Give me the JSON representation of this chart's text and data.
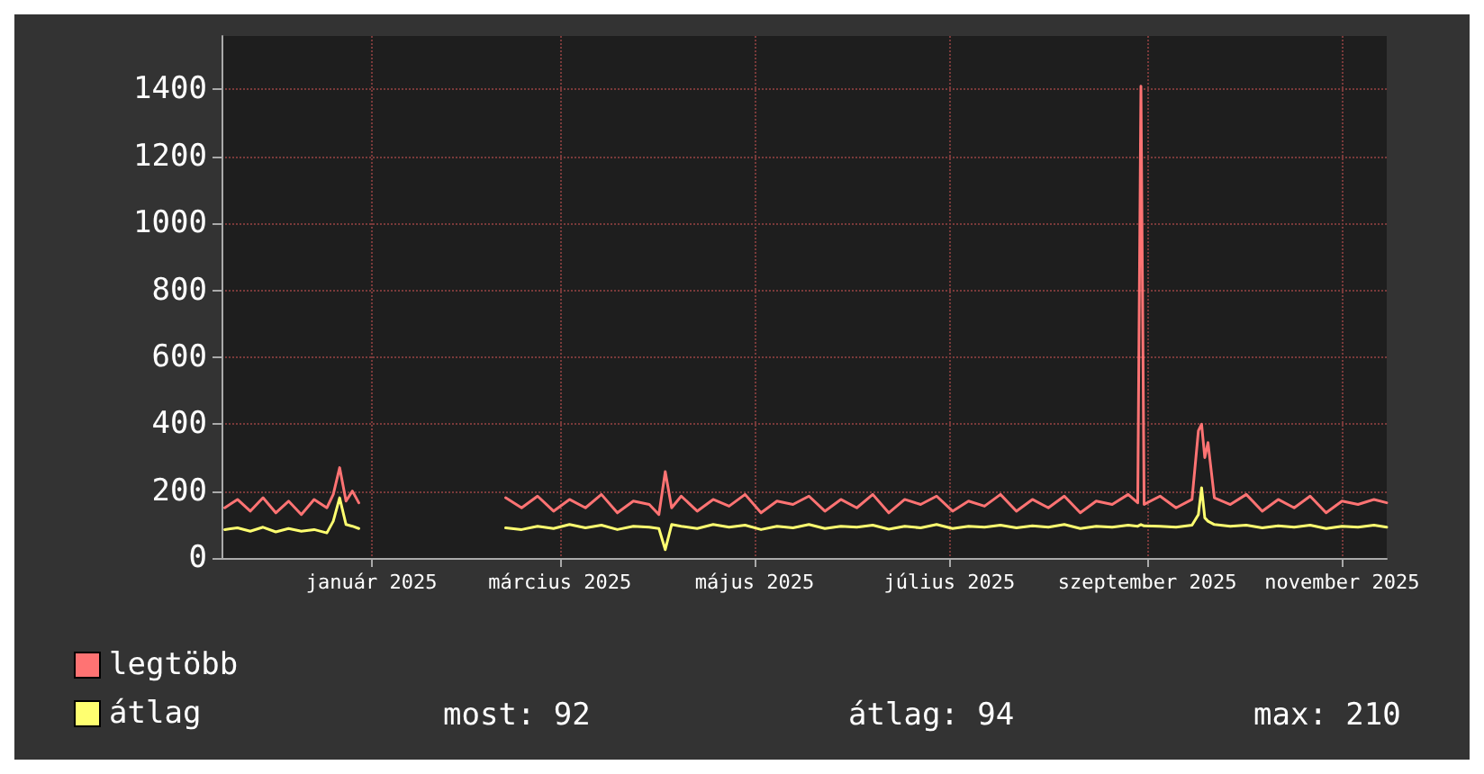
{
  "chart_data": {
    "type": "line",
    "x": [
      "2024-11-16",
      "2024-11-20",
      "2024-11-24",
      "2024-11-28",
      "2024-12-02",
      "2024-12-06",
      "2024-12-10",
      "2024-12-14",
      "2024-12-18",
      "2024-12-20",
      "2024-12-22",
      "2024-12-24",
      "2024-12-26",
      "2024-12-28",
      "2025-01-20",
      "2025-02-12",
      "2025-02-17",
      "2025-02-22",
      "2025-02-27",
      "2025-03-04",
      "2025-03-09",
      "2025-03-14",
      "2025-03-19",
      "2025-03-24",
      "2025-03-29",
      "2025-04-01",
      "2025-04-03",
      "2025-04-05",
      "2025-04-08",
      "2025-04-13",
      "2025-04-18",
      "2025-04-23",
      "2025-04-28",
      "2025-05-03",
      "2025-05-08",
      "2025-05-13",
      "2025-05-18",
      "2025-05-23",
      "2025-05-28",
      "2025-06-02",
      "2025-06-07",
      "2025-06-12",
      "2025-06-17",
      "2025-06-22",
      "2025-06-27",
      "2025-07-02",
      "2025-07-07",
      "2025-07-12",
      "2025-07-17",
      "2025-07-22",
      "2025-07-27",
      "2025-08-01",
      "2025-08-06",
      "2025-08-11",
      "2025-08-16",
      "2025-08-21",
      "2025-08-26",
      "2025-08-29",
      "2025-08-30",
      "2025-08-31",
      "2025-09-05",
      "2025-09-10",
      "2025-09-15",
      "2025-09-17",
      "2025-09-18",
      "2025-09-19",
      "2025-09-20",
      "2025-09-22",
      "2025-09-27",
      "2025-10-02",
      "2025-10-07",
      "2025-10-12",
      "2025-10-17",
      "2025-10-22",
      "2025-10-27",
      "2025-11-01",
      "2025-11-06",
      "2025-11-11",
      "2025-11-15"
    ],
    "series": [
      {
        "name": "legtöbb",
        "color": "#ff7373",
        "values": [
          150,
          175,
          140,
          180,
          135,
          170,
          130,
          175,
          150,
          190,
          270,
          170,
          200,
          165,
          null,
          180,
          150,
          185,
          140,
          175,
          150,
          190,
          135,
          170,
          160,
          130,
          258,
          150,
          185,
          140,
          175,
          155,
          190,
          135,
          170,
          160,
          185,
          140,
          175,
          150,
          190,
          135,
          175,
          160,
          185,
          140,
          170,
          155,
          190,
          140,
          175,
          150,
          185,
          135,
          170,
          160,
          190,
          165,
          1410,
          160,
          185,
          150,
          175,
          380,
          400,
          300,
          345,
          180,
          160,
          190,
          140,
          175,
          150,
          185,
          135,
          170,
          160,
          175,
          165
        ]
      },
      {
        "name": "átlag",
        "color": "#ffff70",
        "values": [
          85,
          90,
          80,
          92,
          78,
          88,
          80,
          85,
          75,
          110,
          180,
          100,
          95,
          88,
          null,
          90,
          85,
          95,
          88,
          100,
          90,
          98,
          85,
          95,
          92,
          88,
          25,
          100,
          95,
          88,
          100,
          92,
          98,
          85,
          95,
          90,
          100,
          88,
          95,
          92,
          98,
          86,
          95,
          90,
          100,
          88,
          95,
          92,
          98,
          90,
          96,
          92,
          100,
          88,
          95,
          92,
          98,
          95,
          100,
          96,
          95,
          92,
          98,
          130,
          210,
          120,
          110,
          100,
          95,
          98,
          90,
          96,
          92,
          98,
          88,
          95,
          92,
          98,
          92
        ]
      }
    ],
    "xlim": [
      "2024-11-15",
      "2025-11-15"
    ],
    "xticks": [
      {
        "value": "2025-01-01",
        "label": "január 2025"
      },
      {
        "value": "2025-03-01",
        "label": "március 2025"
      },
      {
        "value": "2025-05-01",
        "label": "május 2025"
      },
      {
        "value": "2025-07-01",
        "label": "július 2025"
      },
      {
        "value": "2025-09-01",
        "label": "szeptember 2025"
      },
      {
        "value": "2025-11-01",
        "label": "november 2025"
      }
    ],
    "ylim": [
      0,
      1560
    ],
    "yticks": [
      0,
      200,
      400,
      600,
      800,
      1000,
      1200,
      1400
    ],
    "grid": true,
    "legend": "bottom left",
    "marker": "none",
    "line_style": "solid",
    "annotations": [
      "most: 92",
      "átlag: 94",
      "max: 210"
    ]
  }
}
